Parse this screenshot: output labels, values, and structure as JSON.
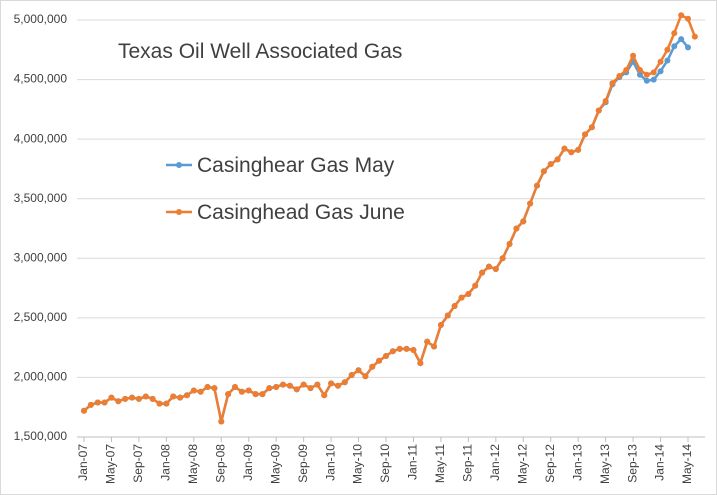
{
  "chart_data": {
    "type": "line",
    "title": "Texas Oil Well Associated Gas",
    "categories": [
      "Jan-07",
      null,
      null,
      null,
      "May-07",
      null,
      null,
      null,
      "Sep-07",
      null,
      null,
      null,
      "Jan-08",
      null,
      null,
      null,
      "May-08",
      null,
      null,
      null,
      "Sep-08",
      null,
      null,
      null,
      "Jan-09",
      null,
      null,
      null,
      "May-09",
      null,
      null,
      null,
      "Sep-09",
      null,
      null,
      null,
      "Jan-10",
      null,
      null,
      null,
      "May-10",
      null,
      null,
      null,
      "Sep-10",
      null,
      null,
      null,
      "Jan-11",
      null,
      null,
      null,
      "May-11",
      null,
      null,
      null,
      "Sep-11",
      null,
      null,
      null,
      "Jan-12",
      null,
      null,
      null,
      "May-12",
      null,
      null,
      null,
      "Sep-12",
      null,
      null,
      null,
      "Jan-13",
      null,
      null,
      null,
      "May-13",
      null,
      null,
      null,
      "Sep-13",
      null,
      null,
      null,
      "Jan-14",
      null,
      null,
      null,
      "May-14",
      null
    ],
    "series": [
      {
        "name": "Casinghear Gas May",
        "color": "#5b9bd5",
        "values": [
          1720000,
          1770000,
          1790000,
          1790000,
          1830000,
          1800000,
          1820000,
          1830000,
          1820000,
          1840000,
          1820000,
          1780000,
          1780000,
          1840000,
          1830000,
          1850000,
          1890000,
          1880000,
          1920000,
          1910000,
          1630000,
          1860000,
          1920000,
          1880000,
          1890000,
          1860000,
          1860000,
          1910000,
          1920000,
          1940000,
          1930000,
          1900000,
          1940000,
          1910000,
          1940000,
          1850000,
          1950000,
          1930000,
          1960000,
          2020000,
          2060000,
          2010000,
          2090000,
          2140000,
          2180000,
          2220000,
          2240000,
          2240000,
          2230000,
          2120000,
          2300000,
          2260000,
          2440000,
          2520000,
          2600000,
          2670000,
          2700000,
          2770000,
          2880000,
          2930000,
          2910000,
          3000000,
          3120000,
          3250000,
          3310000,
          3460000,
          3610000,
          3730000,
          3790000,
          3830000,
          3920000,
          3890000,
          3910000,
          4040000,
          4100000,
          4240000,
          4310000,
          4460000,
          4520000,
          4560000,
          4650000,
          4540000,
          4490000,
          4500000,
          4570000,
          4660000,
          4780000,
          4840000,
          4770000,
          null
        ]
      },
      {
        "name": "Casinghead Gas June",
        "color": "#ed7d31",
        "values": [
          1720000,
          1770000,
          1790000,
          1790000,
          1830000,
          1800000,
          1820000,
          1830000,
          1820000,
          1840000,
          1820000,
          1780000,
          1780000,
          1840000,
          1830000,
          1850000,
          1890000,
          1880000,
          1920000,
          1910000,
          1630000,
          1860000,
          1920000,
          1880000,
          1890000,
          1860000,
          1860000,
          1910000,
          1920000,
          1940000,
          1930000,
          1900000,
          1940000,
          1910000,
          1940000,
          1850000,
          1950000,
          1930000,
          1960000,
          2020000,
          2060000,
          2010000,
          2090000,
          2140000,
          2180000,
          2220000,
          2240000,
          2240000,
          2230000,
          2120000,
          2300000,
          2260000,
          2440000,
          2520000,
          2600000,
          2670000,
          2700000,
          2770000,
          2880000,
          2930000,
          2910000,
          3000000,
          3120000,
          3250000,
          3310000,
          3460000,
          3610000,
          3730000,
          3790000,
          3830000,
          3920000,
          3890000,
          3910000,
          4040000,
          4100000,
          4240000,
          4320000,
          4470000,
          4530000,
          4580000,
          4700000,
          4580000,
          4540000,
          4560000,
          4650000,
          4750000,
          4890000,
          5040000,
          5010000,
          4860000
        ]
      }
    ],
    "ylim": [
      1500000,
      5000000
    ],
    "yticks": [
      {
        "value": 1500000,
        "label": "1,500,000"
      },
      {
        "value": 2000000,
        "label": "2,000,000"
      },
      {
        "value": 2500000,
        "label": "2,500,000"
      },
      {
        "value": 3000000,
        "label": "3,000,000"
      },
      {
        "value": 3500000,
        "label": "3,500,000"
      },
      {
        "value": 4000000,
        "label": "4,000,000"
      },
      {
        "value": 4500000,
        "label": "4,500,000"
      },
      {
        "value": 5000000,
        "label": "5,000,000"
      }
    ],
    "grid": true
  }
}
